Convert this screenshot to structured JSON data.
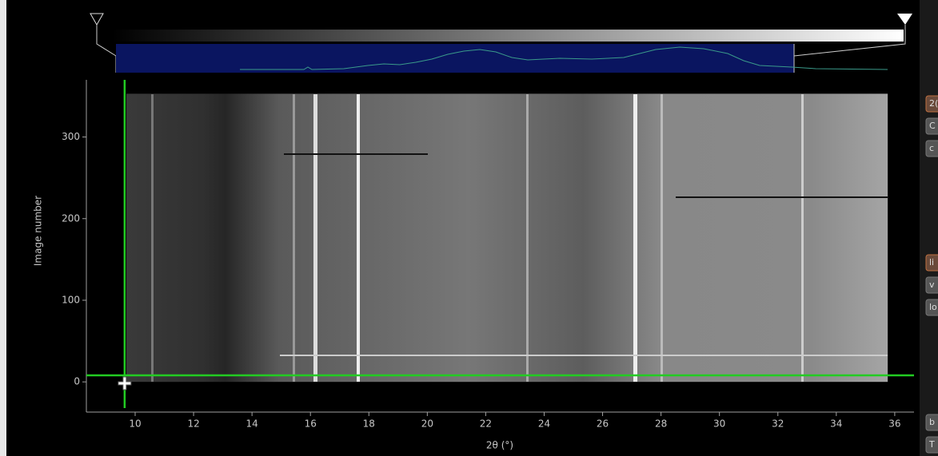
{
  "chart_data": {
    "type": "image",
    "x_label": "2θ (°)",
    "y_label": "Image number",
    "xlim": [
      8.33,
      36.66
    ],
    "ylim": [
      -37,
      370
    ],
    "xticks": [
      10,
      12,
      14,
      16,
      18,
      20,
      22,
      24,
      26,
      28,
      30,
      32,
      34,
      36
    ],
    "yticks": [
      0,
      100,
      200,
      300
    ],
    "image_xlim": [
      9.7,
      35.76
    ],
    "image_ylim": [
      0,
      353
    ],
    "crosshair": {
      "x": 9.64,
      "y": 8,
      "color": "#22cc22"
    }
  },
  "side_buttons": [
    "2(",
    "C",
    "c",
    "li",
    "v",
    "lo",
    "b",
    "T"
  ]
}
